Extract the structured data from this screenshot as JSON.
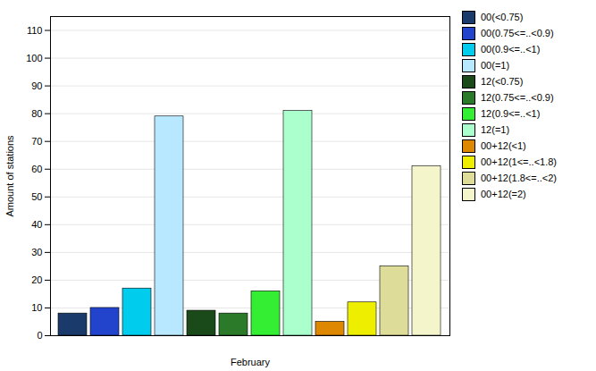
{
  "chart_data": {
    "type": "bar",
    "xlabel": "February",
    "ylabel": "Amount of stations",
    "categories": [
      "00(<0.75)",
      "00(0.75<=..<0.9)",
      "00(0.9<=..<1)",
      "00(=1)",
      "12(<0.75)",
      "12(0.75<=..<0.9)",
      "12(0.9<=..<1)",
      "12(=1)",
      "00+12(<1)",
      "00+12(1<=..<1.8)",
      "00+12(1.8<=..<2)",
      "00+12(=2)"
    ],
    "values": [
      8,
      10,
      17,
      79,
      9,
      8,
      16,
      81,
      5,
      12,
      25,
      61
    ],
    "colors": [
      "#1a3a6b",
      "#2244cc",
      "#00ccee",
      "#b8e8ff",
      "#1a4a1a",
      "#2a7a2a",
      "#33ee33",
      "#aaffcc",
      "#dd8800",
      "#eeee00",
      "#dddd99",
      "#f5f5cc"
    ],
    "ylim": [
      0,
      115
    ],
    "yticks": [
      0,
      10,
      20,
      30,
      40,
      50,
      60,
      70,
      80,
      90,
      100,
      110
    ],
    "grid": true,
    "legend": "upper right",
    "tick_labels": "y"
  }
}
